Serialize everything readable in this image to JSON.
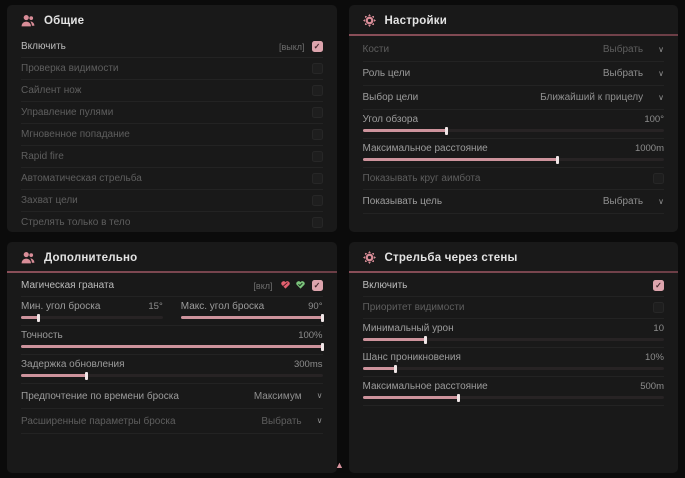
{
  "colors": {
    "accent_pink": "#dda4ad",
    "slider_fill": "#cd939c",
    "header_line": "#8a4f59",
    "panel_bg": "#191919",
    "page_bg": "#0b0b0b",
    "heart_off": "#e2606f",
    "heart_on": "#7cc47c"
  },
  "panels": {
    "general": {
      "title": "Общие",
      "rows": [
        {
          "label": "Включить",
          "hint": "[выкл]",
          "checked": true
        },
        {
          "label": "Проверка видимости",
          "checked": false
        },
        {
          "label": "Сайлент нож",
          "checked": false
        },
        {
          "label": "Управление пулями",
          "checked": false
        },
        {
          "label": "Мгновенное попадание",
          "checked": false
        },
        {
          "label": "Rapid fire",
          "checked": false
        },
        {
          "label": "Автоматическая стрельба",
          "checked": false
        },
        {
          "label": "Захват цели",
          "checked": false
        },
        {
          "label": "Стрелять только в тело",
          "checked": false
        }
      ]
    },
    "settings": {
      "title": "Настройки",
      "rows": [
        {
          "label": "Кости",
          "value": "Выбрать"
        },
        {
          "label": "Роль цели",
          "value": "Выбрать"
        },
        {
          "label": "Выбор цели",
          "value": "Ближайший к прицелу"
        },
        {
          "label": "Угол обзора",
          "value": "100°",
          "fill": 28
        },
        {
          "label": "Максимальное расстояние",
          "value": "1000m",
          "fill": 65
        },
        {
          "label": "Показывать круг аимбота",
          "checked": false
        },
        {
          "label": "Показывать цель",
          "value": "Выбрать"
        }
      ]
    },
    "additional": {
      "title": "Дополнительно",
      "rows": [
        {
          "label": "Магическая граната",
          "hint": "[вкл]",
          "checked": true
        },
        {
          "min": {
            "label": "Мин. угол броска",
            "value": "15°",
            "fill": 13
          },
          "max": {
            "label": "Макс. угол броска",
            "value": "90°",
            "fill": 100
          }
        },
        {
          "label": "Точность",
          "value": "100%",
          "fill": 100
        },
        {
          "label": "Задержка обновления",
          "value": "300ms",
          "fill": 22
        },
        {
          "label": "Предпочтение по времени броска",
          "value": "Максимум"
        },
        {
          "label": "Расширенные параметры броска",
          "value": "Выбрать"
        }
      ]
    },
    "walls": {
      "title": "Стрельба через стены",
      "rows": [
        {
          "label": "Включить",
          "checked": true
        },
        {
          "label": "Приоритет видимости",
          "checked": false
        },
        {
          "label": "Минимальный урон",
          "value": "10",
          "fill": 21
        },
        {
          "label": "Шанс проникновения",
          "value": "10%",
          "fill": 11
        },
        {
          "label": "Максимальное расстояние",
          "value": "500m",
          "fill": 32
        }
      ]
    }
  },
  "footer": {
    "scroll_hint": "▲"
  }
}
